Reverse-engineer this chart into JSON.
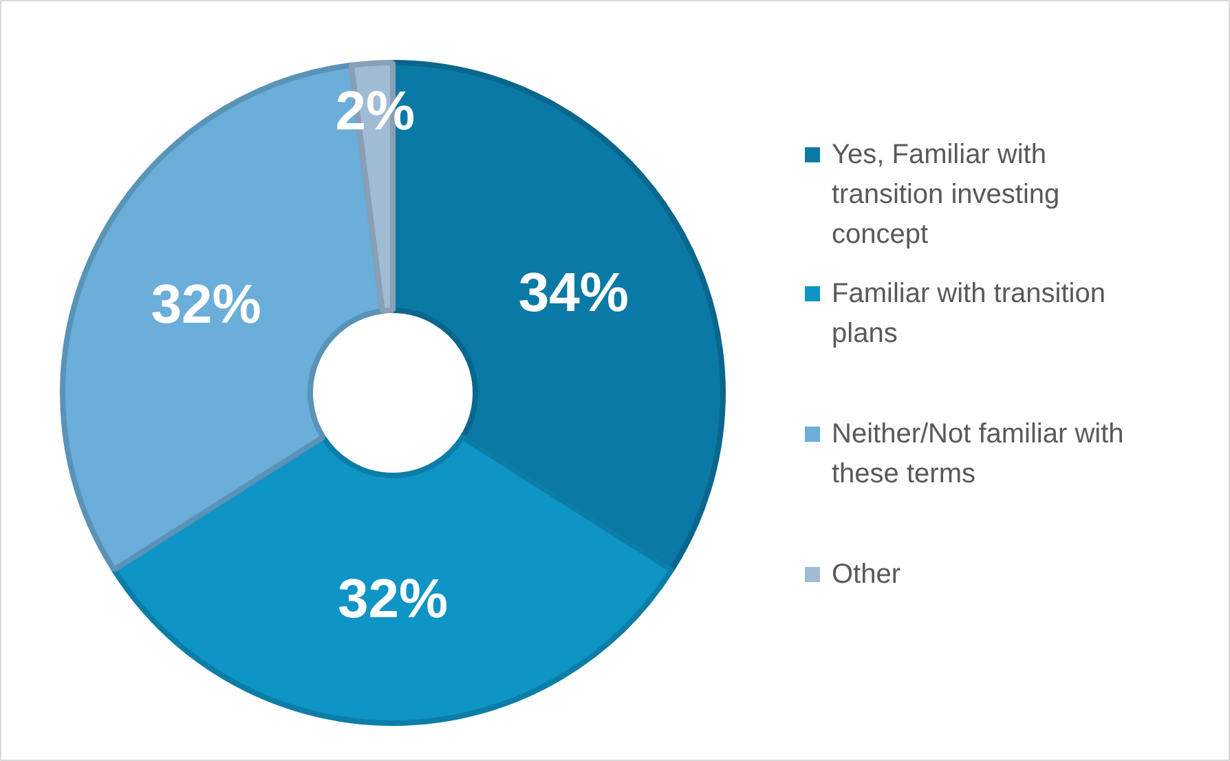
{
  "chart_data": {
    "type": "donut",
    "categories": [
      "Yes, Familiar with transition investing concept",
      "Familiar with transition plans",
      "Neither/Not familiar with these terms",
      "Other"
    ],
    "values": [
      34,
      32,
      32,
      2
    ],
    "colors": [
      "#0b79a5",
      "#0e94c5",
      "#6aaed9",
      "#a0bcd4"
    ],
    "value_labels": [
      "34%",
      "32%",
      "32%",
      "2%"
    ],
    "legend": "right"
  }
}
